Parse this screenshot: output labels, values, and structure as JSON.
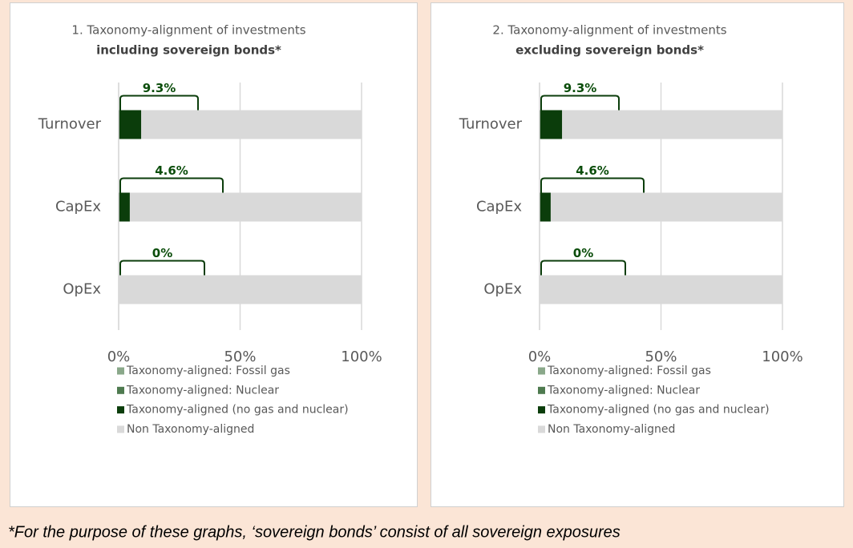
{
  "chart_data": [
    {
      "type": "bar",
      "orientation": "horizontal",
      "stacked": true,
      "title": "1. Taxonomy-alignment of investments",
      "subtitle": "including sovereign bonds*",
      "categories": [
        "Turnover",
        "CapEx",
        "OpEx"
      ],
      "series": [
        {
          "name": "Taxonomy-aligned: Fossil gas",
          "color": "#8aa88a",
          "values": [
            0,
            0,
            0
          ]
        },
        {
          "name": "Taxonomy-aligned: Nuclear",
          "color": "#4e7a4f",
          "values": [
            0,
            0,
            0
          ]
        },
        {
          "name": "Taxonomy-aligned (no gas and nuclear)",
          "color": "#0b3d0b",
          "values": [
            9.3,
            4.6,
            0
          ],
          "value_labels": [
            "9.3%",
            "4.6%",
            "0%"
          ]
        },
        {
          "name": "Non Taxonomy-aligned",
          "color": "#d9d9d9",
          "values": [
            90.7,
            95.4,
            100
          ]
        }
      ],
      "xlim": [
        0,
        100
      ],
      "xticks": [
        {
          "value": 0,
          "label": "0%"
        },
        {
          "value": 50,
          "label": "50%"
        },
        {
          "value": 100,
          "label": "100%"
        }
      ],
      "grid": true,
      "legend": "bottom"
    },
    {
      "type": "bar",
      "orientation": "horizontal",
      "stacked": true,
      "title": "2. Taxonomy-alignment of investments",
      "subtitle": "excluding sovereign bonds*",
      "categories": [
        "Turnover",
        "CapEx",
        "OpEx"
      ],
      "series": [
        {
          "name": "Taxonomy-aligned: Fossil gas",
          "color": "#8aa88a",
          "values": [
            0,
            0,
            0
          ]
        },
        {
          "name": "Taxonomy-aligned: Nuclear",
          "color": "#4e7a4f",
          "values": [
            0,
            0,
            0
          ]
        },
        {
          "name": "Taxonomy-aligned (no gas and nuclear)",
          "color": "#0b3d0b",
          "values": [
            9.3,
            4.6,
            0
          ],
          "value_labels": [
            "9.3%",
            "4.6%",
            "0%"
          ]
        },
        {
          "name": "Non Taxonomy-aligned",
          "color": "#d9d9d9",
          "values": [
            90.7,
            95.4,
            100
          ]
        }
      ],
      "xlim": [
        0,
        100
      ],
      "xticks": [
        {
          "value": 0,
          "label": "0%"
        },
        {
          "value": 50,
          "label": "50%"
        },
        {
          "value": 100,
          "label": "100%"
        }
      ],
      "grid": true,
      "legend": "bottom"
    }
  ],
  "footnote": "*For the purpose of these graphs, ‘sovereign bonds’ consist of  all sovereign exposures"
}
